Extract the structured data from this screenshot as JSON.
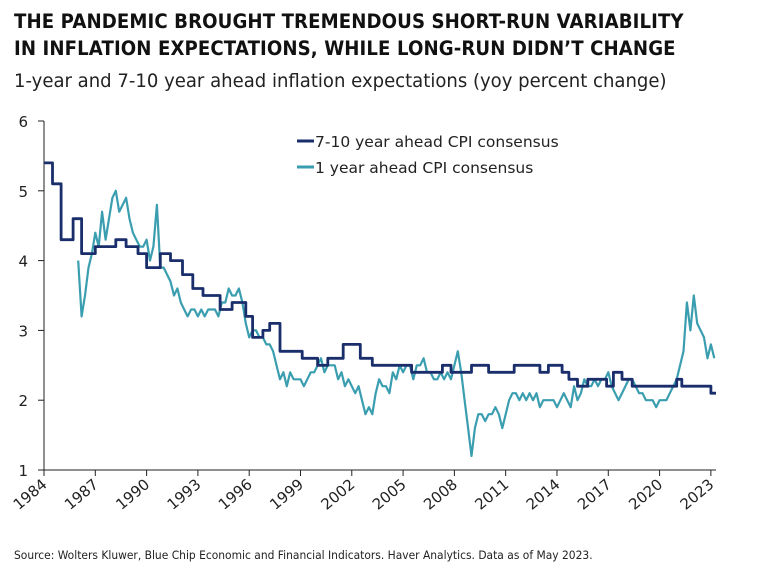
{
  "title": "THE PANDEMIC BROUGHT TREMENDOUS SHORT-RUN VARIABILITY IN INFLATION EXPECTATIONS, WHILE LONG-RUN DIDN’T CHANGE",
  "subtitle": "1-year and 7-10 year ahead inflation expectations (yoy percent change)",
  "source": "Source: Wolters Kluwer, Blue Chip Economic and Financial Indicators. Haver Analytics. Data as of May 2023.",
  "colors": {
    "long_run": "#1a2e6c",
    "short_run": "#3a9eb0",
    "axis": "#222222"
  },
  "chart_data": {
    "type": "line",
    "title": "THE PANDEMIC BROUGHT TREMENDOUS SHORT-RUN VARIABILITY IN INFLATION EXPECTATIONS, WHILE LONG-RUN DIDN’T CHANGE",
    "subtitle": "1-year and 7-10 year ahead inflation expectations (yoy percent change)",
    "xlabel": "",
    "ylabel": "",
    "xlim": [
      1984,
      2023.3
    ],
    "ylim": [
      1,
      6
    ],
    "y_ticks": [
      "1",
      "2",
      "3",
      "4",
      "5",
      "6"
    ],
    "x_ticks": [
      "1984",
      "1987",
      "1990",
      "1993",
      "1996",
      "1999",
      "2002",
      "2005",
      "2008",
      "2011",
      "2014",
      "2017",
      "2020",
      "2023"
    ],
    "grid": false,
    "legend": "top-center",
    "series": [
      {
        "name": "7-10 year ahead CPI consensus",
        "color": "#1a2e6c",
        "step": true,
        "points": [
          [
            1984.0,
            5.4
          ],
          [
            1984.5,
            5.1
          ],
          [
            1985.0,
            4.3
          ],
          [
            1985.7,
            4.6
          ],
          [
            1986.2,
            4.1
          ],
          [
            1987.0,
            4.2
          ],
          [
            1988.2,
            4.3
          ],
          [
            1988.8,
            4.2
          ],
          [
            1989.5,
            4.1
          ],
          [
            1990.0,
            3.9
          ],
          [
            1990.8,
            4.1
          ],
          [
            1991.4,
            4.0
          ],
          [
            1992.1,
            3.8
          ],
          [
            1992.7,
            3.6
          ],
          [
            1993.3,
            3.5
          ],
          [
            1994.3,
            3.3
          ],
          [
            1995.0,
            3.4
          ],
          [
            1995.8,
            3.2
          ],
          [
            1996.2,
            2.9
          ],
          [
            1996.8,
            3.0
          ],
          [
            1997.2,
            3.1
          ],
          [
            1997.8,
            2.7
          ],
          [
            1999.1,
            2.6
          ],
          [
            2000.0,
            2.5
          ],
          [
            2000.6,
            2.6
          ],
          [
            2001.5,
            2.8
          ],
          [
            2002.5,
            2.6
          ],
          [
            2003.2,
            2.5
          ],
          [
            2005.5,
            2.4
          ],
          [
            2007.3,
            2.5
          ],
          [
            2007.8,
            2.4
          ],
          [
            2009.0,
            2.5
          ],
          [
            2010.0,
            2.4
          ],
          [
            2011.5,
            2.5
          ],
          [
            2013.0,
            2.4
          ],
          [
            2013.5,
            2.5
          ],
          [
            2014.3,
            2.4
          ],
          [
            2014.7,
            2.3
          ],
          [
            2015.2,
            2.2
          ],
          [
            2015.8,
            2.3
          ],
          [
            2016.9,
            2.2
          ],
          [
            2017.3,
            2.4
          ],
          [
            2017.8,
            2.3
          ],
          [
            2018.4,
            2.2
          ],
          [
            2020.7,
            2.2
          ],
          [
            2021.0,
            2.3
          ],
          [
            2021.3,
            2.2
          ],
          [
            2023.0,
            2.1
          ],
          [
            2023.3,
            2.1
          ]
        ]
      },
      {
        "name": "1 year ahead CPI consensus",
        "color": "#3a9eb0",
        "step": false,
        "points": [
          [
            1986.0,
            4.0
          ],
          [
            1986.2,
            3.2
          ],
          [
            1986.4,
            3.5
          ],
          [
            1986.6,
            3.9
          ],
          [
            1986.8,
            4.1
          ],
          [
            1987.0,
            4.4
          ],
          [
            1987.2,
            4.2
          ],
          [
            1987.4,
            4.7
          ],
          [
            1987.6,
            4.3
          ],
          [
            1987.8,
            4.6
          ],
          [
            1988.0,
            4.9
          ],
          [
            1988.2,
            5.0
          ],
          [
            1988.4,
            4.7
          ],
          [
            1988.6,
            4.8
          ],
          [
            1988.8,
            4.9
          ],
          [
            1989.0,
            4.6
          ],
          [
            1989.2,
            4.4
          ],
          [
            1989.4,
            4.3
          ],
          [
            1989.6,
            4.2
          ],
          [
            1989.8,
            4.2
          ],
          [
            1990.0,
            4.3
          ],
          [
            1990.2,
            4.0
          ],
          [
            1990.4,
            4.2
          ],
          [
            1990.6,
            4.8
          ],
          [
            1990.8,
            3.9
          ],
          [
            1991.0,
            3.9
          ],
          [
            1991.2,
            3.8
          ],
          [
            1991.4,
            3.7
          ],
          [
            1991.6,
            3.5
          ],
          [
            1991.8,
            3.6
          ],
          [
            1992.0,
            3.4
          ],
          [
            1992.2,
            3.3
          ],
          [
            1992.4,
            3.2
          ],
          [
            1992.6,
            3.3
          ],
          [
            1992.8,
            3.3
          ],
          [
            1993.0,
            3.2
          ],
          [
            1993.2,
            3.3
          ],
          [
            1993.4,
            3.2
          ],
          [
            1993.6,
            3.3
          ],
          [
            1993.8,
            3.3
          ],
          [
            1994.0,
            3.3
          ],
          [
            1994.2,
            3.2
          ],
          [
            1994.4,
            3.4
          ],
          [
            1994.6,
            3.4
          ],
          [
            1994.8,
            3.6
          ],
          [
            1995.0,
            3.5
          ],
          [
            1995.2,
            3.5
          ],
          [
            1995.4,
            3.6
          ],
          [
            1995.6,
            3.4
          ],
          [
            1995.8,
            3.1
          ],
          [
            1996.0,
            2.9
          ],
          [
            1996.2,
            3.0
          ],
          [
            1996.4,
            3.0
          ],
          [
            1996.6,
            2.9
          ],
          [
            1996.8,
            2.9
          ],
          [
            1997.0,
            2.8
          ],
          [
            1997.2,
            2.8
          ],
          [
            1997.4,
            2.7
          ],
          [
            1997.6,
            2.5
          ],
          [
            1997.8,
            2.3
          ],
          [
            1998.0,
            2.4
          ],
          [
            1998.2,
            2.2
          ],
          [
            1998.4,
            2.4
          ],
          [
            1998.6,
            2.3
          ],
          [
            1998.8,
            2.3
          ],
          [
            1999.0,
            2.3
          ],
          [
            1999.2,
            2.2
          ],
          [
            1999.4,
            2.3
          ],
          [
            1999.6,
            2.4
          ],
          [
            1999.8,
            2.4
          ],
          [
            2000.0,
            2.5
          ],
          [
            2000.2,
            2.6
          ],
          [
            2000.4,
            2.4
          ],
          [
            2000.6,
            2.5
          ],
          [
            2000.8,
            2.5
          ],
          [
            2001.0,
            2.5
          ],
          [
            2001.2,
            2.3
          ],
          [
            2001.4,
            2.4
          ],
          [
            2001.6,
            2.2
          ],
          [
            2001.8,
            2.3
          ],
          [
            2002.0,
            2.2
          ],
          [
            2002.2,
            2.1
          ],
          [
            2002.4,
            2.2
          ],
          [
            2002.6,
            2.0
          ],
          [
            2002.8,
            1.8
          ],
          [
            2003.0,
            1.9
          ],
          [
            2003.2,
            1.8
          ],
          [
            2003.4,
            2.1
          ],
          [
            2003.6,
            2.3
          ],
          [
            2003.8,
            2.2
          ],
          [
            2004.0,
            2.2
          ],
          [
            2004.2,
            2.1
          ],
          [
            2004.4,
            2.4
          ],
          [
            2004.6,
            2.3
          ],
          [
            2004.8,
            2.5
          ],
          [
            2005.0,
            2.4
          ],
          [
            2005.2,
            2.5
          ],
          [
            2005.4,
            2.5
          ],
          [
            2005.6,
            2.3
          ],
          [
            2005.8,
            2.5
          ],
          [
            2006.0,
            2.5
          ],
          [
            2006.2,
            2.6
          ],
          [
            2006.4,
            2.4
          ],
          [
            2006.6,
            2.4
          ],
          [
            2006.8,
            2.3
          ],
          [
            2007.0,
            2.3
          ],
          [
            2007.2,
            2.4
          ],
          [
            2007.4,
            2.3
          ],
          [
            2007.6,
            2.4
          ],
          [
            2007.8,
            2.3
          ],
          [
            2008.0,
            2.5
          ],
          [
            2008.2,
            2.7
          ],
          [
            2008.4,
            2.4
          ],
          [
            2008.6,
            2.0
          ],
          [
            2008.8,
            1.6
          ],
          [
            2009.0,
            1.2
          ],
          [
            2009.2,
            1.6
          ],
          [
            2009.4,
            1.8
          ],
          [
            2009.6,
            1.8
          ],
          [
            2009.8,
            1.7
          ],
          [
            2010.0,
            1.8
          ],
          [
            2010.2,
            1.8
          ],
          [
            2010.4,
            1.9
          ],
          [
            2010.6,
            1.8
          ],
          [
            2010.8,
            1.6
          ],
          [
            2011.0,
            1.8
          ],
          [
            2011.2,
            2.0
          ],
          [
            2011.4,
            2.1
          ],
          [
            2011.6,
            2.1
          ],
          [
            2011.8,
            2.0
          ],
          [
            2012.0,
            2.1
          ],
          [
            2012.2,
            2.0
          ],
          [
            2012.4,
            2.1
          ],
          [
            2012.6,
            2.0
          ],
          [
            2012.8,
            2.1
          ],
          [
            2013.0,
            1.9
          ],
          [
            2013.2,
            2.0
          ],
          [
            2013.4,
            2.0
          ],
          [
            2013.6,
            2.0
          ],
          [
            2013.8,
            2.0
          ],
          [
            2014.0,
            1.9
          ],
          [
            2014.2,
            2.0
          ],
          [
            2014.4,
            2.1
          ],
          [
            2014.6,
            2.0
          ],
          [
            2014.8,
            1.9
          ],
          [
            2015.0,
            2.2
          ],
          [
            2015.2,
            2.0
          ],
          [
            2015.4,
            2.1
          ],
          [
            2015.6,
            2.3
          ],
          [
            2015.8,
            2.2
          ],
          [
            2016.0,
            2.2
          ],
          [
            2016.2,
            2.3
          ],
          [
            2016.4,
            2.2
          ],
          [
            2016.6,
            2.3
          ],
          [
            2016.8,
            2.3
          ],
          [
            2017.0,
            2.4
          ],
          [
            2017.2,
            2.2
          ],
          [
            2017.4,
            2.1
          ],
          [
            2017.6,
            2.0
          ],
          [
            2017.8,
            2.1
          ],
          [
            2018.0,
            2.2
          ],
          [
            2018.2,
            2.3
          ],
          [
            2018.4,
            2.3
          ],
          [
            2018.6,
            2.2
          ],
          [
            2018.8,
            2.1
          ],
          [
            2019.0,
            2.1
          ],
          [
            2019.2,
            2.0
          ],
          [
            2019.4,
            2.0
          ],
          [
            2019.6,
            2.0
          ],
          [
            2019.8,
            1.9
          ],
          [
            2020.0,
            2.0
          ],
          [
            2020.2,
            2.0
          ],
          [
            2020.4,
            2.0
          ],
          [
            2020.6,
            2.1
          ],
          [
            2020.8,
            2.2
          ],
          [
            2021.0,
            2.3
          ],
          [
            2021.2,
            2.5
          ],
          [
            2021.4,
            2.7
          ],
          [
            2021.6,
            3.4
          ],
          [
            2021.8,
            3.0
          ],
          [
            2022.0,
            3.5
          ],
          [
            2022.2,
            3.1
          ],
          [
            2022.4,
            3.0
          ],
          [
            2022.6,
            2.9
          ],
          [
            2022.8,
            2.6
          ],
          [
            2023.0,
            2.8
          ],
          [
            2023.2,
            2.6
          ]
        ]
      }
    ]
  }
}
